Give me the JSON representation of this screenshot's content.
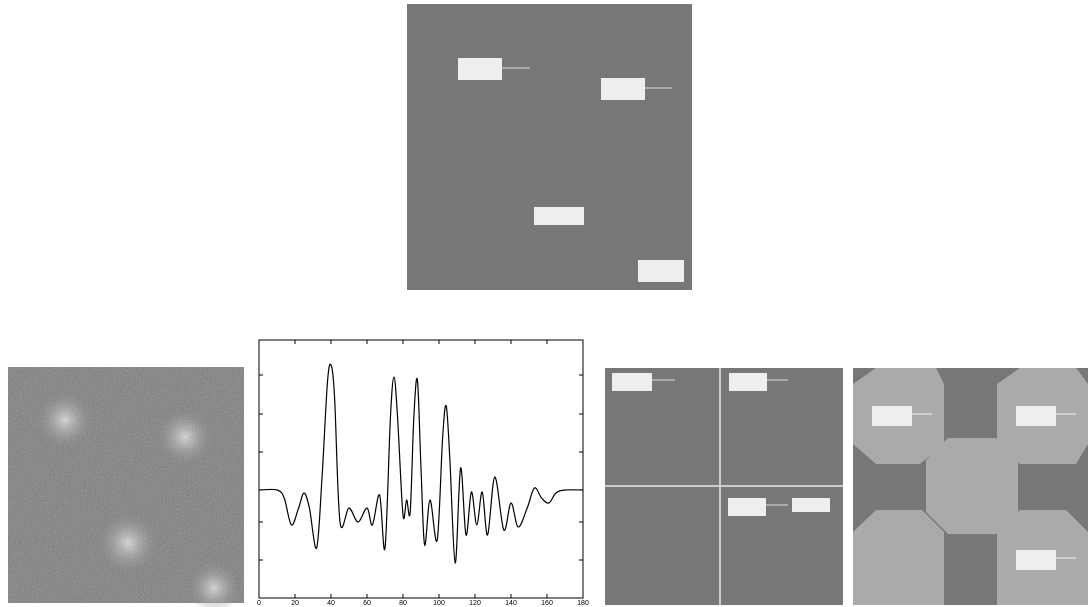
{
  "chart_data": {
    "type": "line",
    "x": [
      0,
      10,
      14,
      18,
      22,
      25,
      28,
      32,
      35,
      38,
      40,
      42,
      45,
      50,
      55,
      60,
      63,
      67,
      70,
      73,
      75,
      77,
      80,
      82,
      84,
      86,
      88,
      90,
      92,
      95,
      99,
      102,
      104,
      106,
      109,
      112,
      115,
      118,
      121,
      124,
      127,
      131,
      136,
      140,
      144,
      149,
      153,
      157,
      161,
      165,
      170,
      180
    ],
    "values": [
      108,
      108,
      100,
      73,
      90,
      105,
      90,
      50,
      120,
      215,
      233,
      200,
      76,
      90,
      76,
      90,
      73,
      103,
      50,
      180,
      221,
      180,
      83,
      98,
      86,
      180,
      218,
      130,
      53,
      98,
      58,
      160,
      192,
      140,
      35,
      130,
      63,
      106,
      73,
      106,
      63,
      121,
      68,
      95,
      71,
      90,
      110,
      100,
      95,
      105,
      108,
      108
    ],
    "color": "#000000",
    "xlim": [
      0,
      180
    ],
    "ylim": [
      0,
      258
    ],
    "xticks": [
      0,
      20,
      40,
      60,
      80,
      100,
      120,
      140,
      160,
      180
    ]
  }
}
